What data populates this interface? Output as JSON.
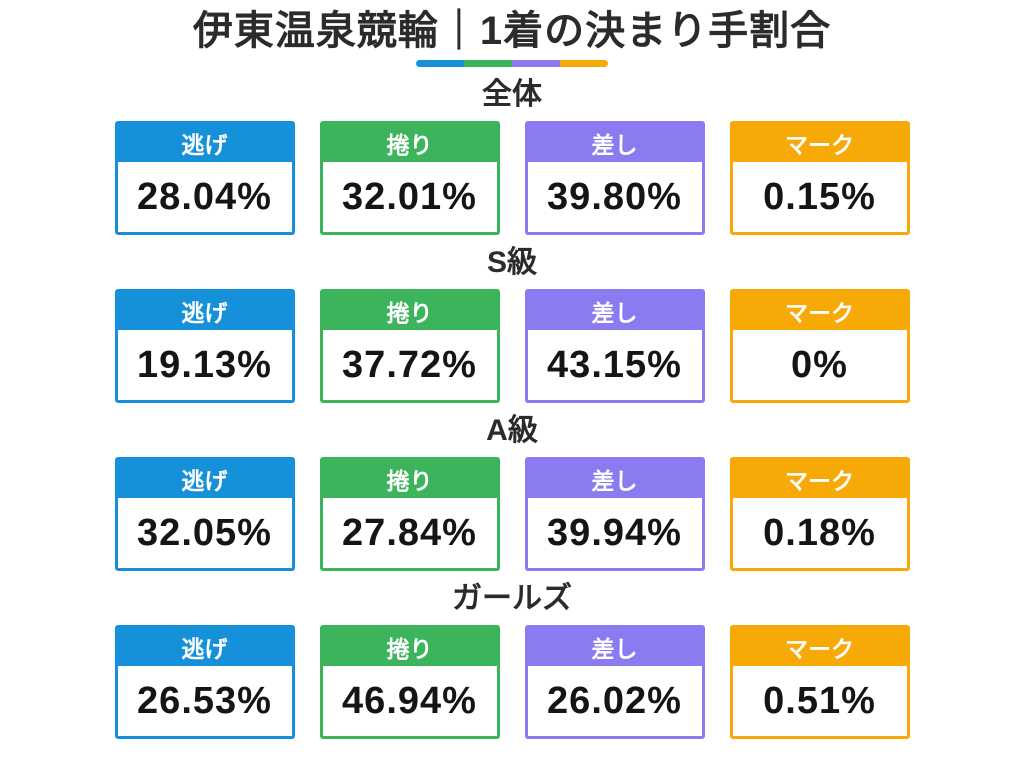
{
  "title": "伊東温泉競輪｜1着の決まり手割合",
  "colors": {
    "nige": "#1691D9",
    "makuri": "#3CB45C",
    "sashi": "#8B7BF1",
    "mark": "#F7A908"
  },
  "column_labels": [
    "逃げ",
    "捲り",
    "差し",
    "マーク"
  ],
  "sections": [
    {
      "heading": "全体",
      "values": [
        "28.04%",
        "32.01%",
        "39.80%",
        "0.15%"
      ]
    },
    {
      "heading": "S級",
      "values": [
        "19.13%",
        "37.72%",
        "43.15%",
        "0%"
      ]
    },
    {
      "heading": "A級",
      "values": [
        "32.05%",
        "27.84%",
        "39.94%",
        "0.18%"
      ]
    },
    {
      "heading": "ガールズ",
      "values": [
        "26.53%",
        "46.94%",
        "26.02%",
        "0.51%"
      ]
    }
  ],
  "chart_data": {
    "type": "table",
    "title": "伊東温泉競輪｜1着の決まり手割合",
    "columns": [
      "逃げ",
      "捲り",
      "差し",
      "マーク"
    ],
    "rows": [
      {
        "label": "全体",
        "values_pct": [
          28.04,
          32.01,
          39.8,
          0.15
        ]
      },
      {
        "label": "S級",
        "values_pct": [
          19.13,
          37.72,
          43.15,
          0
        ]
      },
      {
        "label": "A級",
        "values_pct": [
          32.05,
          27.84,
          39.94,
          0.18
        ]
      },
      {
        "label": "ガールズ",
        "values_pct": [
          26.53,
          46.94,
          26.02,
          0.51
        ]
      }
    ],
    "unit": "%",
    "legend_colors": {
      "逃げ": "#1691D9",
      "捲り": "#3CB45C",
      "差し": "#8B7BF1",
      "マーク": "#F7A908"
    }
  }
}
